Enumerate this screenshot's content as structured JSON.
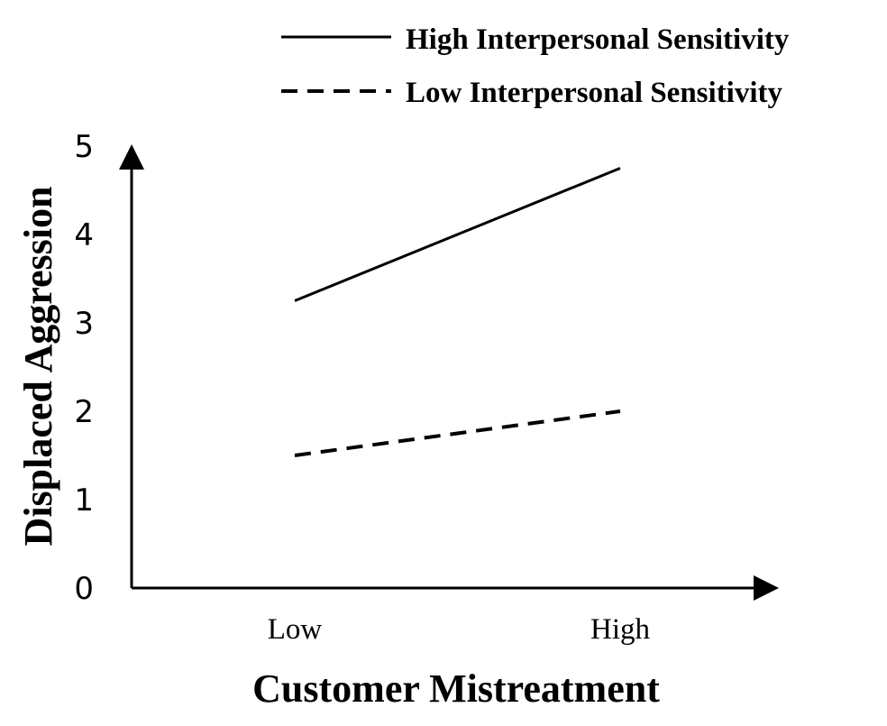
{
  "chart_data": {
    "type": "line",
    "xlabel": "Customer Mistreatment",
    "ylabel": "Displaced Aggression",
    "categories": [
      "Low",
      "High"
    ],
    "ylim": [
      0,
      5
    ],
    "yticks": [
      "0",
      "1",
      "2",
      "3",
      "4",
      "5"
    ],
    "grid": false,
    "legend_position": "top-right",
    "series": [
      {
        "name": "High Interpersonal Sensitivity",
        "values": [
          3.25,
          4.75
        ],
        "line_style": "solid",
        "color": "#000000"
      },
      {
        "name": "Low Interpersonal Sensitivity",
        "values": [
          1.5,
          2.0
        ],
        "line_style": "dashed",
        "color": "#000000"
      }
    ]
  }
}
